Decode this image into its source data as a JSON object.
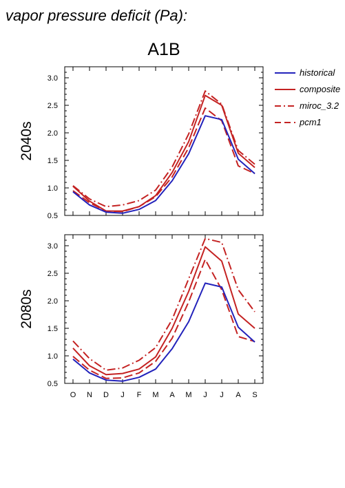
{
  "heading": "vapor pressure deficit (Pa):",
  "scenario_title": "A1B",
  "colors": {
    "historical": "#2222bb",
    "future": "#c42222"
  },
  "legend": [
    {
      "label": "historical",
      "color": "#2222bb",
      "dash": "solid"
    },
    {
      "label": "composite",
      "color": "#c42222",
      "dash": "solid"
    },
    {
      "label": "miroc_3.2",
      "color": "#c42222",
      "dash": "dashdot"
    },
    {
      "label": "pcm1",
      "color": "#c42222",
      "dash": "dashed"
    }
  ],
  "chart_data": [
    {
      "type": "line",
      "row_label": "2040s",
      "categories": [
        "O",
        "N",
        "D",
        "J",
        "F",
        "M",
        "A",
        "M",
        "J",
        "J",
        "A",
        "S"
      ],
      "ylim": [
        0.5,
        3.2
      ],
      "yticks": [
        "0.5",
        "1.0",
        "1.5",
        "2.0",
        "2.5",
        "3.0"
      ],
      "series": [
        {
          "name": "historical",
          "values": [
            0.93,
            0.69,
            0.56,
            0.54,
            0.61,
            0.77,
            1.13,
            1.62,
            2.31,
            2.24,
            1.52,
            1.26
          ]
        },
        {
          "name": "composite",
          "values": [
            1.03,
            0.76,
            0.58,
            0.58,
            0.66,
            0.86,
            1.28,
            1.84,
            2.68,
            2.5,
            1.63,
            1.37
          ]
        },
        {
          "name": "miroc_3.2",
          "values": [
            1.04,
            0.8,
            0.66,
            0.69,
            0.77,
            0.96,
            1.38,
            1.98,
            2.76,
            2.52,
            1.68,
            1.43
          ]
        },
        {
          "name": "pcm1",
          "values": [
            0.95,
            0.73,
            0.58,
            0.57,
            0.66,
            0.84,
            1.2,
            1.73,
            2.45,
            2.22,
            1.4,
            1.26
          ]
        }
      ]
    },
    {
      "type": "line",
      "row_label": "2080s",
      "categories": [
        "O",
        "N",
        "D",
        "J",
        "F",
        "M",
        "A",
        "M",
        "J",
        "J",
        "A",
        "S"
      ],
      "ylim": [
        0.5,
        3.2
      ],
      "yticks": [
        "0.5",
        "1.0",
        "1.5",
        "2.0",
        "2.5",
        "3.0"
      ],
      "series": [
        {
          "name": "historical",
          "values": [
            0.94,
            0.69,
            0.56,
            0.54,
            0.61,
            0.76,
            1.13,
            1.62,
            2.32,
            2.25,
            1.52,
            1.25
          ]
        },
        {
          "name": "composite",
          "values": [
            1.14,
            0.82,
            0.66,
            0.68,
            0.76,
            0.98,
            1.5,
            2.17,
            2.98,
            2.72,
            1.76,
            1.5
          ]
        },
        {
          "name": "miroc_3.2",
          "values": [
            1.27,
            0.95,
            0.74,
            0.78,
            0.92,
            1.15,
            1.66,
            2.4,
            3.13,
            3.06,
            2.2,
            1.8
          ]
        },
        {
          "name": "pcm1",
          "values": [
            0.99,
            0.74,
            0.59,
            0.6,
            0.69,
            0.9,
            1.32,
            1.98,
            2.75,
            2.2,
            1.35,
            1.26
          ]
        }
      ]
    }
  ]
}
